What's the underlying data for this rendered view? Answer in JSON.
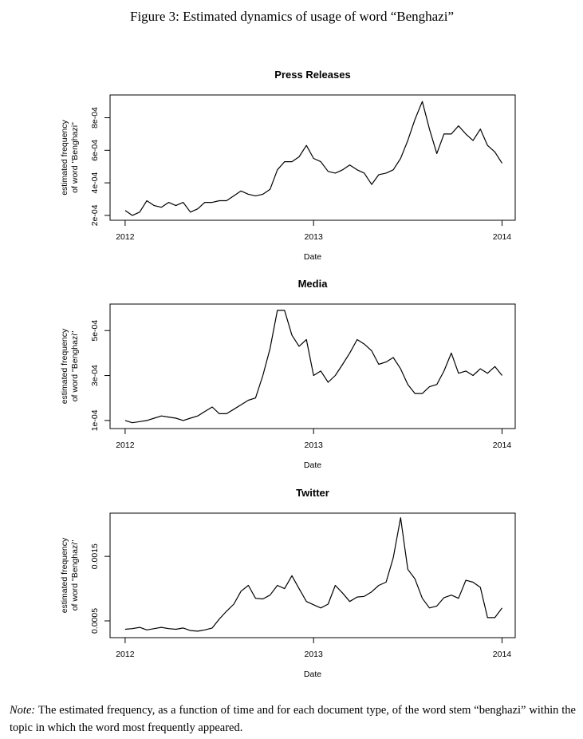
{
  "caption": "Figure 3: Estimated dynamics of usage of word “Benghazi”",
  "note_label": "Note:",
  "note": "The estimated frequency, as a function of time and for each document type, of the word stem “benghazi” within the topic in which the word most frequently appeared.",
  "chart_data": [
    {
      "type": "line",
      "title": "Press Releases",
      "xlabel": "Date",
      "ylabel": [
        "estimated frequency",
        "of word \"Benghazi\""
      ],
      "color": "#000000",
      "x": [
        2012,
        2012.038,
        2012.077,
        2012.115,
        2012.154,
        2012.192,
        2012.231,
        2012.269,
        2012.308,
        2012.346,
        2012.385,
        2012.423,
        2012.462,
        2012.5,
        2012.538,
        2012.577,
        2012.615,
        2012.654,
        2012.692,
        2012.731,
        2012.769,
        2012.808,
        2012.846,
        2012.885,
        2012.923,
        2012.962,
        2013,
        2013.038,
        2013.077,
        2013.115,
        2013.154,
        2013.192,
        2013.231,
        2013.269,
        2013.308,
        2013.346,
        2013.385,
        2013.423,
        2013.462,
        2013.5,
        2013.538,
        2013.577,
        2013.615,
        2013.654,
        2013.692,
        2013.731,
        2013.769,
        2013.808,
        2013.846,
        2013.885,
        2013.923,
        2013.962,
        2014
      ],
      "values": [
        0.00023,
        0.0002,
        0.00022,
        0.00029,
        0.00026,
        0.00025,
        0.00028,
        0.00026,
        0.00028,
        0.00022,
        0.00024,
        0.00028,
        0.00028,
        0.00029,
        0.00029,
        0.00032,
        0.00035,
        0.00033,
        0.00032,
        0.00033,
        0.00036,
        0.00048,
        0.00053,
        0.00053,
        0.00056,
        0.00063,
        0.00055,
        0.00053,
        0.00047,
        0.00046,
        0.00048,
        0.00051,
        0.00048,
        0.00046,
        0.00039,
        0.00045,
        0.00046,
        0.00048,
        0.00055,
        0.00066,
        0.00079,
        0.0009,
        0.00073,
        0.00058,
        0.0007,
        0.0007,
        0.00075,
        0.0007,
        0.00066,
        0.00073,
        0.00063,
        0.00059,
        0.00052
      ],
      "xlim": [
        2011.92,
        2014.07
      ],
      "xticks": [
        2012,
        2013,
        2014
      ],
      "ylim": [
        0.00017,
        0.00094
      ],
      "yticks": [
        {
          "value": 0.0002,
          "label": "2e-04"
        },
        {
          "value": 0.0004,
          "label": "4e-04"
        },
        {
          "value": 0.0006,
          "label": "6e-04"
        },
        {
          "value": 0.0008,
          "label": "8e-04"
        }
      ]
    },
    {
      "type": "line",
      "title": "Media",
      "xlabel": "Date",
      "ylabel": [
        "estimated frequency",
        "of word \"Benghazi\""
      ],
      "color": "#000000",
      "x": [
        2012,
        2012.038,
        2012.077,
        2012.115,
        2012.154,
        2012.192,
        2012.231,
        2012.269,
        2012.308,
        2012.346,
        2012.385,
        2012.423,
        2012.462,
        2012.5,
        2012.538,
        2012.577,
        2012.615,
        2012.654,
        2012.692,
        2012.731,
        2012.769,
        2012.808,
        2012.846,
        2012.885,
        2012.923,
        2012.962,
        2013,
        2013.038,
        2013.077,
        2013.115,
        2013.154,
        2013.192,
        2013.231,
        2013.269,
        2013.308,
        2013.346,
        2013.385,
        2013.423,
        2013.462,
        2013.5,
        2013.538,
        2013.577,
        2013.615,
        2013.654,
        2013.692,
        2013.731,
        2013.769,
        2013.808,
        2013.846,
        2013.885,
        2013.923,
        2013.962,
        2014
      ],
      "values": [
        0.0001,
        9e-05,
        9.5e-05,
        0.0001,
        0.00011,
        0.00012,
        0.000115,
        0.00011,
        0.0001,
        0.00011,
        0.00012,
        0.00014,
        0.00016,
        0.00013,
        0.00013,
        0.00015,
        0.00017,
        0.00019,
        0.0002,
        0.0003,
        0.00042,
        0.00059,
        0.00059,
        0.00048,
        0.00043,
        0.00046,
        0.0003,
        0.00032,
        0.00027,
        0.0003,
        0.00035,
        0.0004,
        0.00046,
        0.00044,
        0.00041,
        0.00035,
        0.00036,
        0.00038,
        0.00033,
        0.00026,
        0.00022,
        0.00022,
        0.00025,
        0.00026,
        0.00032,
        0.0004,
        0.00031,
        0.00032,
        0.0003,
        0.00033,
        0.00031,
        0.00034,
        0.0003
      ],
      "xlim": [
        2011.92,
        2014.07
      ],
      "xticks": [
        2012,
        2013,
        2014
      ],
      "ylim": [
        6.4e-05,
        0.000618
      ],
      "yticks": [
        {
          "value": 0.0001,
          "label": "1e-04"
        },
        {
          "value": 0.0003,
          "label": "3e-04"
        },
        {
          "value": 0.0005,
          "label": "5e-04"
        }
      ]
    },
    {
      "type": "line",
      "title": "Twitter",
      "xlabel": "Date",
      "ylabel": [
        "estimated frequency",
        "of word \"Benghazi\""
      ],
      "color": "#000000",
      "x": [
        2012,
        2012.038,
        2012.077,
        2012.115,
        2012.154,
        2012.192,
        2012.231,
        2012.269,
        2012.308,
        2012.346,
        2012.385,
        2012.423,
        2012.462,
        2012.5,
        2012.538,
        2012.577,
        2012.615,
        2012.654,
        2012.692,
        2012.731,
        2012.769,
        2012.808,
        2012.846,
        2012.885,
        2012.923,
        2012.962,
        2013,
        2013.038,
        2013.077,
        2013.115,
        2013.154,
        2013.192,
        2013.231,
        2013.269,
        2013.308,
        2013.346,
        2013.385,
        2013.423,
        2013.462,
        2013.5,
        2013.538,
        2013.577,
        2013.615,
        2013.654,
        2013.692,
        2013.731,
        2013.769,
        2013.808,
        2013.846,
        2013.885,
        2013.923,
        2013.962,
        2014
      ],
      "values": [
        0.00037,
        0.00038,
        0.0004,
        0.00036,
        0.00038,
        0.0004,
        0.00038,
        0.00037,
        0.00039,
        0.00035,
        0.00034,
        0.00036,
        0.00039,
        0.00053,
        0.00065,
        0.00076,
        0.00096,
        0.00105,
        0.00085,
        0.00084,
        0.0009,
        0.00105,
        0.001,
        0.0012,
        0.001,
        0.0008,
        0.00075,
        0.0007,
        0.00076,
        0.00105,
        0.00093,
        0.0008,
        0.00087,
        0.00088,
        0.00095,
        0.00105,
        0.0011,
        0.00148,
        0.0021,
        0.0013,
        0.00115,
        0.00085,
        0.0007,
        0.00073,
        0.00086,
        0.0009,
        0.00085,
        0.00113,
        0.0011,
        0.00102,
        0.00055,
        0.00055,
        0.0007
      ],
      "xlim": [
        2011.92,
        2014.07
      ],
      "xticks": [
        2012,
        2013,
        2014
      ],
      "ylim": [
        0.00024,
        0.00217
      ],
      "yticks": [
        {
          "value": 0.0005,
          "label": "0.0005"
        },
        {
          "value": 0.0015,
          "label": "0.0015"
        }
      ]
    }
  ]
}
